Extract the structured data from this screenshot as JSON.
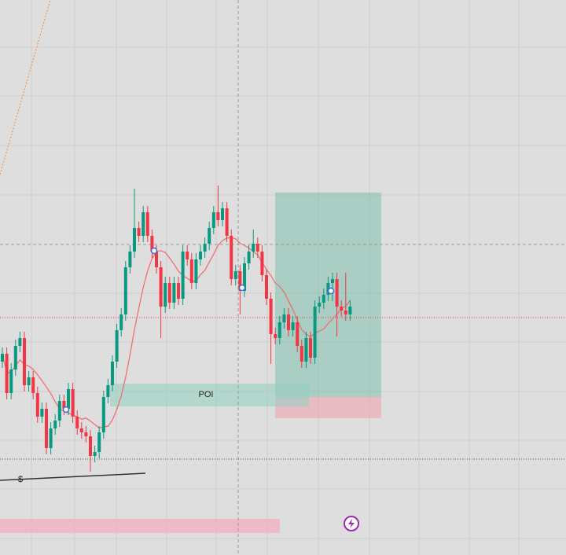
{
  "chart_data": {
    "type": "candlestick",
    "ylim": [
      0,
      706
    ],
    "up_color": "#089981",
    "down_color": "#f23645",
    "ma_color": "#f07070",
    "poi_label": "POI",
    "liquidity_label": "$",
    "candles": [
      [
        246,
        264,
        238,
        256
      ],
      [
        256,
        264,
        198,
        206
      ],
      [
        206,
        244,
        198,
        236
      ],
      [
        236,
        274,
        228,
        266
      ],
      [
        266,
        284,
        258,
        276
      ],
      [
        276,
        284,
        208,
        216
      ],
      [
        216,
        234,
        208,
        226
      ],
      [
        226,
        234,
        198,
        206
      ],
      [
        206,
        214,
        168,
        176
      ],
      [
        176,
        194,
        168,
        186
      ],
      [
        186,
        194,
        128,
        136
      ],
      [
        136,
        169,
        128,
        161
      ],
      [
        161,
        179,
        153,
        171
      ],
      [
        171,
        204,
        163,
        196
      ],
      [
        196,
        204,
        178,
        186
      ],
      [
        186,
        219,
        178,
        211
      ],
      [
        211,
        219,
        168,
        176
      ],
      [
        176,
        184,
        153,
        161
      ],
      [
        161,
        169,
        148,
        156
      ],
      [
        156,
        164,
        143,
        151
      ],
      [
        151,
        159,
        106,
        126
      ],
      [
        126,
        139,
        118,
        131
      ],
      [
        131,
        164,
        123,
        156
      ],
      [
        156,
        209,
        148,
        201
      ],
      [
        201,
        224,
        193,
        216
      ],
      [
        216,
        254,
        208,
        246
      ],
      [
        246,
        294,
        238,
        286
      ],
      [
        286,
        314,
        278,
        306
      ],
      [
        306,
        374,
        298,
        366
      ],
      [
        366,
        394,
        358,
        386
      ],
      [
        386,
        466,
        378,
        416
      ],
      [
        416,
        424,
        398,
        406
      ],
      [
        406,
        444,
        398,
        436
      ],
      [
        436,
        444,
        398,
        406
      ],
      [
        406,
        414,
        378,
        386
      ],
      [
        386,
        394,
        358,
        366
      ],
      [
        366,
        374,
        276,
        316
      ],
      [
        316,
        354,
        308,
        346
      ],
      [
        346,
        354,
        313,
        321
      ],
      [
        321,
        354,
        313,
        346
      ],
      [
        346,
        354,
        318,
        326
      ],
      [
        326,
        394,
        318,
        386
      ],
      [
        386,
        394,
        368,
        376
      ],
      [
        376,
        384,
        338,
        346
      ],
      [
        346,
        384,
        338,
        376
      ],
      [
        376,
        394,
        368,
        386
      ],
      [
        386,
        404,
        378,
        396
      ],
      [
        396,
        424,
        388,
        416
      ],
      [
        416,
        444,
        408,
        436
      ],
      [
        436,
        470,
        418,
        426
      ],
      [
        426,
        449,
        418,
        441
      ],
      [
        441,
        449,
        398,
        406
      ],
      [
        406,
        414,
        343,
        351
      ],
      [
        351,
        369,
        343,
        361
      ],
      [
        361,
        369,
        306,
        336
      ],
      [
        336,
        379,
        328,
        371
      ],
      [
        371,
        394,
        363,
        386
      ],
      [
        386,
        414,
        378,
        396
      ],
      [
        396,
        404,
        378,
        386
      ],
      [
        386,
        394,
        348,
        356
      ],
      [
        356,
        364,
        318,
        326
      ],
      [
        326,
        334,
        243,
        281
      ],
      [
        281,
        289,
        268,
        276
      ],
      [
        276,
        304,
        268,
        296
      ],
      [
        296,
        314,
        288,
        306
      ],
      [
        306,
        314,
        278,
        286
      ],
      [
        286,
        304,
        278,
        296
      ],
      [
        296,
        304,
        258,
        266
      ],
      [
        266,
        274,
        238,
        246
      ],
      [
        246,
        284,
        238,
        276
      ],
      [
        276,
        284,
        243,
        251
      ],
      [
        251,
        324,
        243,
        316
      ],
      [
        316,
        329,
        308,
        321
      ],
      [
        321,
        339,
        313,
        331
      ],
      [
        331,
        354,
        323,
        346
      ],
      [
        346,
        359,
        323,
        351
      ],
      [
        351,
        359,
        278,
        316
      ],
      [
        316,
        324,
        303,
        311
      ],
      [
        311,
        359,
        298,
        306
      ],
      [
        306,
        324,
        298,
        316
      ]
    ]
  }
}
